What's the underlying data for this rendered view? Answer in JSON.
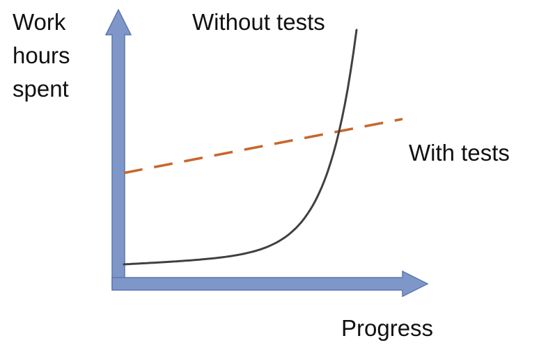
{
  "chart_data": {
    "type": "line",
    "title": "",
    "ylabel_lines": [
      "Work",
      "hours",
      "spent"
    ],
    "xlabel": "Progress",
    "axes": {
      "x_ticks": false,
      "y_ticks": false,
      "grid": false,
      "axis_color": "#7f96c9",
      "axis_edge_color": "#5d77b0"
    },
    "series": [
      {
        "name": "Without tests",
        "style": "solid",
        "color": "#404040",
        "shape": "exponential",
        "x": [
          0.0,
          0.5,
          1.0
        ],
        "y": [
          0.0,
          0.06,
          1.0
        ]
      },
      {
        "name": "With tests",
        "style": "dashed",
        "color": "#c8662b",
        "shape": "linear",
        "x": [
          0.0,
          1.0
        ],
        "y": [
          0.39,
          0.62
        ]
      }
    ]
  }
}
